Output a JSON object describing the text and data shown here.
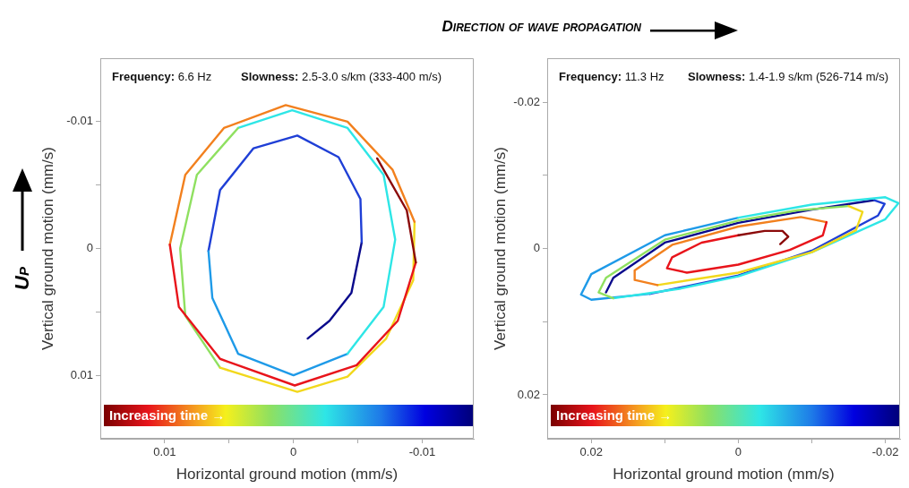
{
  "chart_data": [
    {
      "type": "line",
      "title": "Frequency: 6.6 Hz",
      "subtitle": "Slowness: 2.5-3.0 s/km (333-400 m/s)",
      "xlabel": "Horizontal ground motion (mm/s)",
      "ylabel": "Vertical ground motion (mm/s)",
      "xlim": [
        0.015,
        -0.014
      ],
      "xticks": [
        0.01,
        {
          "value": 0.005,
          "label": null
        },
        0,
        {
          "value": -0.005,
          "label": null
        },
        -0.01
      ],
      "ylim": [
        0.015,
        -0.015
      ],
      "yticks": [
        -0.01,
        {
          "value": -0.005,
          "label": null
        },
        0,
        {
          "value": 0.005,
          "label": null
        },
        0.01
      ],
      "annotations": [
        "Increasing time →",
        "Up"
      ],
      "series": [
        {
          "color": "#8b0a0a",
          "x": [
            -0.0065,
            -0.0088,
            -0.0095
          ],
          "values": [
            -0.0071,
            -0.003,
            0.0011
          ]
        },
        {
          "color": "#e8141b",
          "x": [
            -0.0095,
            -0.0081,
            -0.0049,
            -0.0001,
            0.0057,
            0.0089,
            0.0096
          ],
          "values": [
            0.0011,
            0.0057,
            0.0092,
            0.0108,
            0.0087,
            0.0046,
            -0.0003
          ]
        },
        {
          "color": "#f2801e",
          "x": [
            0.0096,
            0.0084,
            0.0054,
            0.0006,
            -0.0042,
            -0.0077,
            -0.0094
          ],
          "values": [
            -0.0003,
            -0.0058,
            -0.0095,
            -0.0113,
            -0.01,
            -0.0062,
            -0.0021
          ]
        },
        {
          "color": "#f2d81c",
          "x": [
            -0.0094,
            -0.0093,
            -0.0072,
            -0.0042,
            -0.0003,
            0.0057
          ],
          "values": [
            -0.0021,
            0.0025,
            0.0071,
            0.0101,
            0.0113,
            0.0094
          ]
        },
        {
          "color": "#8fe060",
          "x": [
            0.0057,
            0.0084,
            0.0088,
            0.0075,
            0.0043
          ],
          "values": [
            0.0094,
            0.0053,
            0,
            -0.0058,
            -0.0095
          ]
        },
        {
          "color": "#2ee6e6",
          "x": [
            0.0043,
            0.0001,
            -0.0042,
            -0.007,
            -0.0079,
            -0.007,
            -0.0042
          ],
          "values": [
            -0.0095,
            -0.0109,
            -0.0095,
            -0.0058,
            -0.0007,
            0.0046,
            0.0083
          ]
        },
        {
          "color": "#1e9ae8",
          "x": [
            -0.0042,
            0,
            0.0043,
            0.0063,
            0.0066
          ],
          "values": [
            0.0083,
            0.01,
            0.0083,
            0.0039,
            0.0002
          ]
        },
        {
          "color": "#1f3fd6",
          "x": [
            0.0066,
            0.0057,
            0.0031,
            -0.0003,
            -0.0035,
            -0.0052,
            -0.0053
          ],
          "values": [
            0.0002,
            -0.0046,
            -0.0079,
            -0.0089,
            -0.0072,
            -0.0039,
            -0.0005
          ]
        },
        {
          "color": "#0a0a8c",
          "x": [
            -0.0053,
            -0.0045,
            -0.0028,
            -0.0011
          ],
          "values": [
            -0.0005,
            0.0035,
            0.0057,
            0.0071
          ]
        }
      ]
    },
    {
      "type": "line",
      "title": "Frequency: 11.3 Hz",
      "subtitle": "Slowness: 1.4-1.9 s/km (526-714 m/s)",
      "xlabel": "Horizontal ground motion (mm/s)",
      "ylabel": "Vertical ground motion (mm/s)",
      "xlim": [
        0.026,
        -0.022
      ],
      "xticks": [
        0.02,
        {
          "value": 0.01,
          "label": null
        },
        0,
        {
          "value": -0.01,
          "label": null
        },
        -0.02
      ],
      "ylim": [
        0.026,
        -0.026
      ],
      "yticks": [
        -0.02,
        {
          "value": -0.01,
          "label": null
        },
        0,
        {
          "value": 0.01,
          "label": null
        },
        0.02
      ],
      "annotations": [
        "Increasing time →",
        "Direction of wave propagation"
      ],
      "series": [
        {
          "color": "#8b0a0a",
          "x": [
            -0.0057,
            -0.0068,
            -0.006,
            -0.0036,
            0
          ],
          "values": [
            -0.0006,
            -0.0016,
            -0.0024,
            -0.0024,
            -0.0018
          ]
        },
        {
          "color": "#e8141b",
          "x": [
            0,
            0.005,
            0.009,
            0.0097,
            0.007,
            0,
            -0.007,
            -0.0115,
            -0.012
          ],
          "values": [
            -0.0018,
            -0.0008,
            0.0012,
            0.0027,
            0.0033,
            0.0022,
            0.0002,
            -0.0018,
            -0.0036
          ]
        },
        {
          "color": "#f2801e",
          "x": [
            -0.012,
            -0.0085,
            0,
            0.009,
            0.0141,
            0.0141,
            0.011
          ],
          "values": [
            -0.0036,
            -0.0043,
            -0.003,
            -0.0005,
            0.003,
            0.0043,
            0.005
          ]
        },
        {
          "color": "#f2d81c",
          "x": [
            0.011,
            0,
            -0.01,
            -0.016,
            -0.0169,
            -0.015
          ],
          "values": [
            0.005,
            0.0033,
            0.0005,
            -0.0025,
            -0.005,
            -0.0058
          ]
        },
        {
          "color": "#8fe060",
          "x": [
            -0.015,
            -0.008,
            0,
            0.01,
            0.018,
            0.019,
            0.017
          ],
          "values": [
            -0.0058,
            -0.0052,
            -0.0038,
            -0.0012,
            0.004,
            0.006,
            0.0068
          ]
        },
        {
          "color": "#2ee6e6",
          "x": [
            0.017,
            0.008,
            0,
            -0.01,
            -0.02,
            -0.0218,
            -0.02,
            -0.01,
            0
          ],
          "values": [
            0.0068,
            0.0055,
            0.0038,
            0.0005,
            -0.004,
            -0.0062,
            -0.007,
            -0.006,
            -0.0042
          ]
        },
        {
          "color": "#1e9ae8",
          "x": [
            0,
            0.01,
            0.02,
            0.0214,
            0.02,
            0.012
          ],
          "values": [
            -0.0042,
            -0.0018,
            0.0035,
            0.0063,
            0.007,
            0.0062
          ]
        },
        {
          "color": "#1f3fd6",
          "x": [
            0.012,
            0,
            -0.01,
            -0.019,
            -0.0199,
            -0.0185
          ],
          "values": [
            0.0062,
            0.0037,
            0.0003,
            -0.0045,
            -0.0061,
            -0.0066
          ]
        },
        {
          "color": "#0a0a8c",
          "x": [
            -0.0185,
            -0.01,
            0,
            0.01,
            0.017,
            0.018
          ],
          "values": [
            -0.0066,
            -0.0053,
            -0.0035,
            -0.0008,
            0.004,
            0.006
          ]
        }
      ]
    }
  ]
}
